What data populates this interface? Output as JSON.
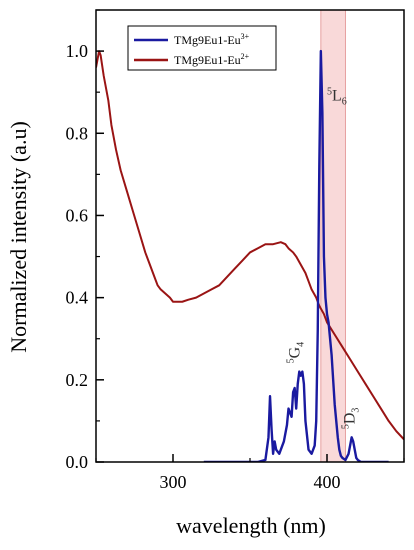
{
  "chart_data": {
    "type": "line",
    "xlabel": "wavelength (nm)",
    "ylabel": "Normalized intensity (a.u)",
    "xlim": [
      250,
      450
    ],
    "ylim": [
      0,
      1.1
    ],
    "x_ticks": [
      300,
      400
    ],
    "x_tick_labels": [
      "300",
      "400"
    ],
    "y_ticks": [
      0.0,
      0.2,
      0.4,
      0.6,
      0.8,
      1.0
    ],
    "y_tick_labels": [
      "0.0",
      "0.2",
      "0.4",
      "0.6",
      "0.8",
      "1.0"
    ],
    "grid": false,
    "legend_position": "top-left",
    "highlight_band": {
      "x_range": [
        396,
        412
      ],
      "color": "#f7c9c9"
    },
    "series": [
      {
        "name": "TMg9Eu1-Eu3+",
        "name_base": "TMg9Eu1-Eu",
        "name_sup": "3+",
        "color": "#1a1aa0",
        "x": [
          320,
          355,
          360,
          362,
          363,
          364,
          365,
          366,
          367,
          369,
          372,
          374,
          375,
          377,
          378,
          379,
          380,
          381,
          382,
          383,
          384,
          385,
          386,
          388,
          390,
          392,
          393,
          394,
          395,
          396,
          397,
          398,
          399,
          400,
          401,
          402,
          403,
          404,
          405,
          406,
          407,
          408,
          409,
          410,
          412,
          414,
          415,
          416,
          417,
          418,
          419,
          420,
          422,
          425,
          440
        ],
        "y": [
          0.0,
          0.0,
          0.005,
          0.06,
          0.16,
          0.08,
          0.02,
          0.05,
          0.03,
          0.02,
          0.05,
          0.09,
          0.13,
          0.11,
          0.17,
          0.18,
          0.13,
          0.19,
          0.22,
          0.21,
          0.22,
          0.19,
          0.1,
          0.03,
          0.02,
          0.04,
          0.1,
          0.32,
          0.72,
          1.0,
          0.85,
          0.5,
          0.4,
          0.36,
          0.34,
          0.3,
          0.26,
          0.2,
          0.14,
          0.1,
          0.06,
          0.03,
          0.015,
          0.01,
          0.005,
          0.02,
          0.04,
          0.06,
          0.05,
          0.03,
          0.01,
          0.005,
          0.0,
          0.0,
          0.0
        ]
      },
      {
        "name": "TMg9Eu1-Eu2+",
        "name_base": "TMg9Eu1-Eu",
        "name_sup": "2+",
        "color": "#9a1414",
        "x": [
          250,
          251,
          252,
          253,
          255,
          258,
          260,
          263,
          266,
          270,
          274,
          278,
          282,
          285,
          288,
          290,
          292,
          295,
          298,
          300,
          303,
          306,
          310,
          315,
          320,
          325,
          330,
          335,
          340,
          345,
          350,
          355,
          360,
          365,
          370,
          373,
          375,
          378,
          380,
          383,
          386,
          388,
          390,
          393,
          395,
          398,
          400,
          405,
          410,
          415,
          420,
          425,
          430,
          435,
          440,
          445,
          450
        ],
        "y": [
          0.96,
          0.98,
          1.0,
          0.99,
          0.94,
          0.88,
          0.82,
          0.76,
          0.71,
          0.66,
          0.61,
          0.56,
          0.51,
          0.48,
          0.45,
          0.43,
          0.42,
          0.41,
          0.4,
          0.39,
          0.39,
          0.39,
          0.395,
          0.4,
          0.41,
          0.42,
          0.43,
          0.45,
          0.47,
          0.49,
          0.51,
          0.52,
          0.53,
          0.53,
          0.535,
          0.53,
          0.52,
          0.51,
          0.5,
          0.48,
          0.46,
          0.44,
          0.42,
          0.4,
          0.38,
          0.36,
          0.34,
          0.31,
          0.28,
          0.25,
          0.22,
          0.19,
          0.16,
          0.13,
          0.1,
          0.075,
          0.055
        ]
      }
    ],
    "annotations": [
      {
        "base": "5",
        "main": "L",
        "sub": "6",
        "x": 400,
        "y": 0.88,
        "rotate": 0
      },
      {
        "base": "5",
        "main": "G",
        "sub": "4",
        "x": 382,
        "y": 0.24,
        "rotate": -90
      },
      {
        "base": "5",
        "main": "D",
        "sub": "3",
        "x": 418,
        "y": 0.08,
        "rotate": -90
      }
    ]
  }
}
